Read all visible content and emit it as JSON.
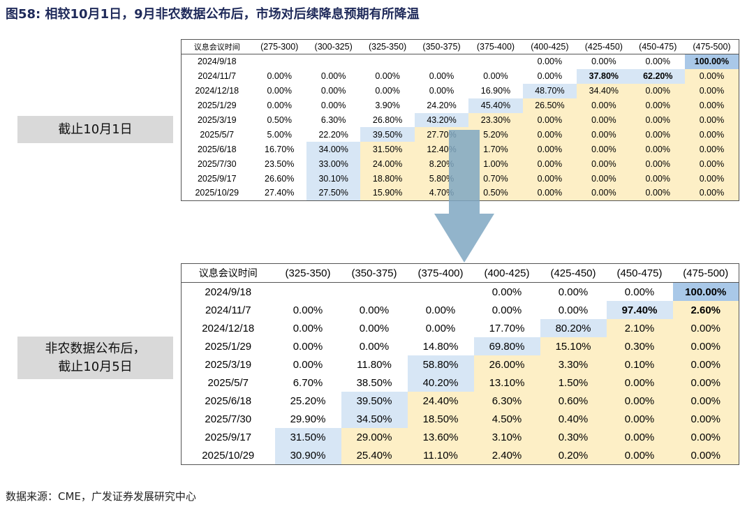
{
  "title": {
    "prefix": "图58:",
    "text": "相较10月1日，9月非农数据公布后，市场对后续降息预期有所降温"
  },
  "label_before": "截止10月1日",
  "label_after_lines": [
    "非农数据公布后，",
    "截止10月5日"
  ],
  "table_before": {
    "header_meeting": "议息会议时间",
    "ranges": [
      "(275-300)",
      "(300-325)",
      "(325-350)",
      "(350-375)",
      "(375-400)",
      "(400-425)",
      "(425-450)",
      "(450-475)",
      "(475-500)"
    ],
    "rows": [
      {
        "date": "2024/9/18",
        "cells": [
          "",
          "",
          "",
          "",
          "",
          "0.00%",
          "0.00%",
          "0.00%",
          "100.00%"
        ],
        "styles": [
          "",
          "",
          "",
          "",
          "",
          "",
          "",
          "",
          "strong"
        ]
      },
      {
        "date": "2024/11/7",
        "cells": [
          "0.00%",
          "0.00%",
          "0.00%",
          "0.00%",
          "0.00%",
          "0.00%",
          "37.80%",
          "62.20%",
          "0.00%"
        ],
        "styles": [
          "",
          "",
          "",
          "",
          "",
          "",
          "bold-blue",
          "bold-blue",
          "yel"
        ]
      },
      {
        "date": "2024/12/18",
        "cells": [
          "0.00%",
          "0.00%",
          "0.00%",
          "0.00%",
          "16.90%",
          "48.70%",
          "34.40%",
          "0.00%",
          "0.00%"
        ],
        "styles": [
          "",
          "",
          "",
          "",
          "",
          "blue",
          "yel",
          "yel",
          "yel"
        ]
      },
      {
        "date": "2025/1/29",
        "cells": [
          "0.00%",
          "0.00%",
          "3.90%",
          "24.20%",
          "45.40%",
          "26.50%",
          "0.00%",
          "0.00%",
          "0.00%"
        ],
        "styles": [
          "",
          "",
          "",
          "",
          "blue",
          "yel",
          "yel",
          "yel",
          "yel"
        ]
      },
      {
        "date": "2025/3/19",
        "cells": [
          "0.50%",
          "6.30%",
          "26.80%",
          "43.20%",
          "23.30%",
          "0.00%",
          "0.00%",
          "0.00%",
          "0.00%"
        ],
        "styles": [
          "",
          "",
          "",
          "blue",
          "yel",
          "yel",
          "yel",
          "yel",
          "yel"
        ]
      },
      {
        "date": "2025/5/7",
        "cells": [
          "5.00%",
          "22.20%",
          "39.50%",
          "27.70%",
          "5.20%",
          "0.00%",
          "0.00%",
          "0.00%",
          "0.00%"
        ],
        "styles": [
          "",
          "",
          "blue",
          "yel",
          "yel",
          "yel",
          "yel",
          "yel",
          "yel"
        ]
      },
      {
        "date": "2025/6/18",
        "cells": [
          "16.70%",
          "34.00%",
          "31.50%",
          "12.40%",
          "1.70%",
          "0.00%",
          "0.00%",
          "0.00%",
          "0.00%"
        ],
        "styles": [
          "",
          "blue",
          "yel",
          "yel",
          "yel",
          "yel",
          "yel",
          "yel",
          "yel"
        ]
      },
      {
        "date": "2025/7/30",
        "cells": [
          "23.50%",
          "33.00%",
          "24.00%",
          "8.20%",
          "1.00%",
          "0.00%",
          "0.00%",
          "0.00%",
          "0.00%"
        ],
        "styles": [
          "",
          "blue",
          "yel",
          "yel",
          "yel",
          "yel",
          "yel",
          "yel",
          "yel"
        ]
      },
      {
        "date": "2025/9/17",
        "cells": [
          "26.60%",
          "30.10%",
          "18.80%",
          "5.80%",
          "0.70%",
          "0.00%",
          "0.00%",
          "0.00%",
          "0.00%"
        ],
        "styles": [
          "",
          "blue",
          "yel",
          "yel",
          "yel",
          "yel",
          "yel",
          "yel",
          "yel"
        ]
      },
      {
        "date": "2025/10/29",
        "cells": [
          "27.40%",
          "27.50%",
          "15.90%",
          "4.70%",
          "0.50%",
          "0.00%",
          "0.00%",
          "0.00%",
          "0.00%"
        ],
        "styles": [
          "",
          "blue",
          "yel",
          "yel",
          "yel",
          "yel",
          "yel",
          "yel",
          "yel"
        ]
      }
    ]
  },
  "table_after": {
    "header_meeting": "议息会议时间",
    "ranges": [
      "(325-350)",
      "(350-375)",
      "(375-400)",
      "(400-425)",
      "(425-450)",
      "(450-475)",
      "(475-500)"
    ],
    "rows": [
      {
        "date": "2024/9/18",
        "cells": [
          "",
          "",
          "",
          "0.00%",
          "0.00%",
          "0.00%",
          "100.00%"
        ],
        "styles": [
          "",
          "",
          "",
          "",
          "",
          "",
          "strong"
        ]
      },
      {
        "date": "2024/11/7",
        "cells": [
          "0.00%",
          "0.00%",
          "0.00%",
          "0.00%",
          "0.00%",
          "97.40%",
          "2.60%"
        ],
        "styles": [
          "",
          "",
          "",
          "",
          "",
          "bold-blue",
          "bold-yel"
        ]
      },
      {
        "date": "2024/12/18",
        "cells": [
          "0.00%",
          "0.00%",
          "0.00%",
          "17.70%",
          "80.20%",
          "2.10%",
          "0.00%"
        ],
        "styles": [
          "",
          "",
          "",
          "",
          "blue",
          "yel",
          "yel"
        ]
      },
      {
        "date": "2025/1/29",
        "cells": [
          "0.00%",
          "0.00%",
          "14.80%",
          "69.80%",
          "15.10%",
          "0.30%",
          "0.00%"
        ],
        "styles": [
          "",
          "",
          "",
          "blue",
          "yel",
          "yel",
          "yel"
        ]
      },
      {
        "date": "2025/3/19",
        "cells": [
          "0.00%",
          "11.80%",
          "58.80%",
          "26.00%",
          "3.30%",
          "0.10%",
          "0.00%"
        ],
        "styles": [
          "",
          "",
          "blue",
          "yel",
          "yel",
          "yel",
          "yel"
        ]
      },
      {
        "date": "2025/5/7",
        "cells": [
          "6.70%",
          "38.50%",
          "40.20%",
          "13.10%",
          "1.50%",
          "0.00%",
          "0.00%"
        ],
        "styles": [
          "",
          "",
          "blue",
          "yel",
          "yel",
          "yel",
          "yel"
        ]
      },
      {
        "date": "2025/6/18",
        "cells": [
          "25.20%",
          "39.50%",
          "24.40%",
          "6.30%",
          "0.60%",
          "0.00%",
          "0.00%"
        ],
        "styles": [
          "",
          "blue",
          "yel",
          "yel",
          "yel",
          "yel",
          "yel"
        ]
      },
      {
        "date": "2025/7/30",
        "cells": [
          "29.90%",
          "34.50%",
          "18.50%",
          "4.50%",
          "0.40%",
          "0.00%",
          "0.00%"
        ],
        "styles": [
          "",
          "blue",
          "yel",
          "yel",
          "yel",
          "yel",
          "yel"
        ]
      },
      {
        "date": "2025/9/17",
        "cells": [
          "31.50%",
          "29.00%",
          "13.60%",
          "3.10%",
          "0.30%",
          "0.00%",
          "0.00%"
        ],
        "styles": [
          "blue",
          "yel",
          "yel",
          "yel",
          "yel",
          "yel",
          "yel"
        ]
      },
      {
        "date": "2025/10/29",
        "cells": [
          "30.90%",
          "25.40%",
          "11.10%",
          "2.40%",
          "0.20%",
          "0.00%",
          "0.00%"
        ],
        "styles": [
          "blue",
          "yel",
          "yel",
          "yel",
          "yel",
          "yel",
          "yel"
        ]
      }
    ]
  },
  "source": "数据来源：CME，广发证券发展研究中心",
  "colors": {
    "blue": "#d7e6f5",
    "yellow": "#fdefc6",
    "strong": "#a9c8e8",
    "arrow": "#7fa7c2"
  }
}
